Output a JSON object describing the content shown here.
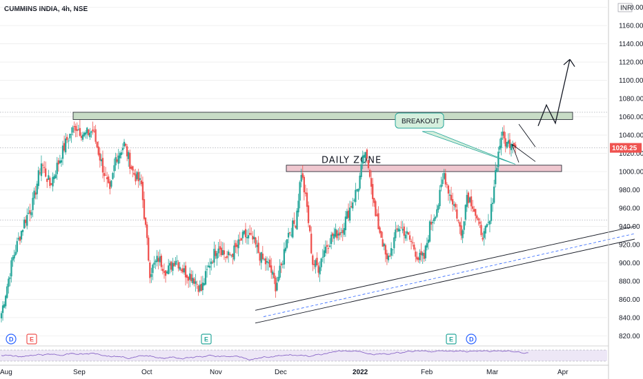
{
  "header": {
    "title": "CUMMINS INDIA, 4h, NSE"
  },
  "currency": "INR",
  "last_price": "1026.25",
  "colors": {
    "up": "#26a69a",
    "down": "#ef5350",
    "grid": "#e6e6e6",
    "zone_top_fill": "#c8dcc6",
    "daily_zone_fill": "#efc7cf",
    "callout_fill": "#d5efdd",
    "callout_stroke": "#26a69a",
    "price_tag": "#ef5350",
    "dividend": "#2962ff",
    "earnings_red": "#ef5350",
    "earnings_green": "#26a69a",
    "rsi_line": "#7e57c2",
    "rsi_band": "#ede7f6"
  },
  "annotations": {
    "daily_zone": "DAILY ZONE",
    "breakout": "BREAKOUT"
  },
  "events": [
    {
      "label": "D",
      "kind": "dividend"
    },
    {
      "label": "E",
      "kind": "earnings-red"
    },
    {
      "label": "E",
      "kind": "earnings-green"
    },
    {
      "label": "E",
      "kind": "earnings-green"
    },
    {
      "label": "D",
      "kind": "dividend"
    }
  ],
  "chart_data": {
    "type": "candlestick",
    "title": "CUMMINS INDIA, 4h, NSE",
    "y_ticks": [
      820,
      840,
      860,
      880,
      900,
      920,
      940,
      960,
      980,
      1000,
      1020,
      1040,
      1060,
      1080,
      1100,
      1120,
      1140,
      1160,
      1180
    ],
    "x_ticks": [
      "Aug",
      "Sep",
      "Oct",
      "Nov",
      "Dec",
      "2022",
      "Feb",
      "Mar",
      "Apr"
    ],
    "x_ticks_bold": [
      "2022"
    ],
    "ylim": [
      815,
      1185
    ],
    "zones": [
      {
        "name": "resistance",
        "low": 1057,
        "high": 1065
      },
      {
        "name": "DAILY ZONE",
        "low": 1000,
        "high": 1007
      }
    ],
    "horizontal_levels": [
      1065,
      1026,
      947
    ],
    "anchor_closes": [
      [
        0,
        845
      ],
      [
        8,
        905
      ],
      [
        16,
        945
      ],
      [
        22,
        965
      ],
      [
        28,
        1010
      ],
      [
        34,
        985
      ],
      [
        40,
        1010
      ],
      [
        46,
        1035
      ],
      [
        52,
        1050
      ],
      [
        58,
        1040
      ],
      [
        64,
        1045
      ],
      [
        70,
        1010
      ],
      [
        76,
        975
      ],
      [
        80,
        1015
      ],
      [
        86,
        1030
      ],
      [
        92,
        1000
      ],
      [
        98,
        985
      ],
      [
        104,
        890
      ],
      [
        110,
        905
      ],
      [
        116,
        890
      ],
      [
        122,
        905
      ],
      [
        128,
        890
      ],
      [
        134,
        885
      ],
      [
        140,
        870
      ],
      [
        146,
        900
      ],
      [
        152,
        920
      ],
      [
        158,
        905
      ],
      [
        164,
        915
      ],
      [
        170,
        930
      ],
      [
        176,
        925
      ],
      [
        182,
        905
      ],
      [
        188,
        895
      ],
      [
        192,
        875
      ],
      [
        196,
        895
      ],
      [
        200,
        930
      ],
      [
        206,
        945
      ],
      [
        210,
        1000
      ],
      [
        214,
        960
      ],
      [
        218,
        900
      ],
      [
        222,
        895
      ],
      [
        226,
        915
      ],
      [
        232,
        930
      ],
      [
        238,
        935
      ],
      [
        244,
        960
      ],
      [
        250,
        985
      ],
      [
        254,
        1020
      ],
      [
        258,
        1000
      ],
      [
        262,
        950
      ],
      [
        266,
        930
      ],
      [
        270,
        900
      ],
      [
        274,
        920
      ],
      [
        278,
        940
      ],
      [
        282,
        935
      ],
      [
        288,
        920
      ],
      [
        292,
        905
      ],
      [
        296,
        905
      ],
      [
        300,
        940
      ],
      [
        306,
        965
      ],
      [
        310,
        998
      ],
      [
        314,
        975
      ],
      [
        318,
        960
      ],
      [
        322,
        930
      ],
      [
        326,
        975
      ],
      [
        330,
        965
      ],
      [
        334,
        940
      ],
      [
        338,
        930
      ],
      [
        342,
        945
      ],
      [
        346,
        1000
      ],
      [
        350,
        1040
      ],
      [
        354,
        1030
      ],
      [
        358,
        1035
      ],
      [
        360,
        1026
      ]
    ],
    "rsi": {
      "ylim": [
        0,
        100
      ],
      "levels": [
        70,
        30
      ]
    },
    "projection": [
      [
        1050,
        1065
      ],
      [
        1075,
        1090
      ],
      [
        1100,
        1125
      ]
    ],
    "trend_channel": [
      [
        370,
        848
      ],
      [
        920,
        940
      ]
    ]
  }
}
